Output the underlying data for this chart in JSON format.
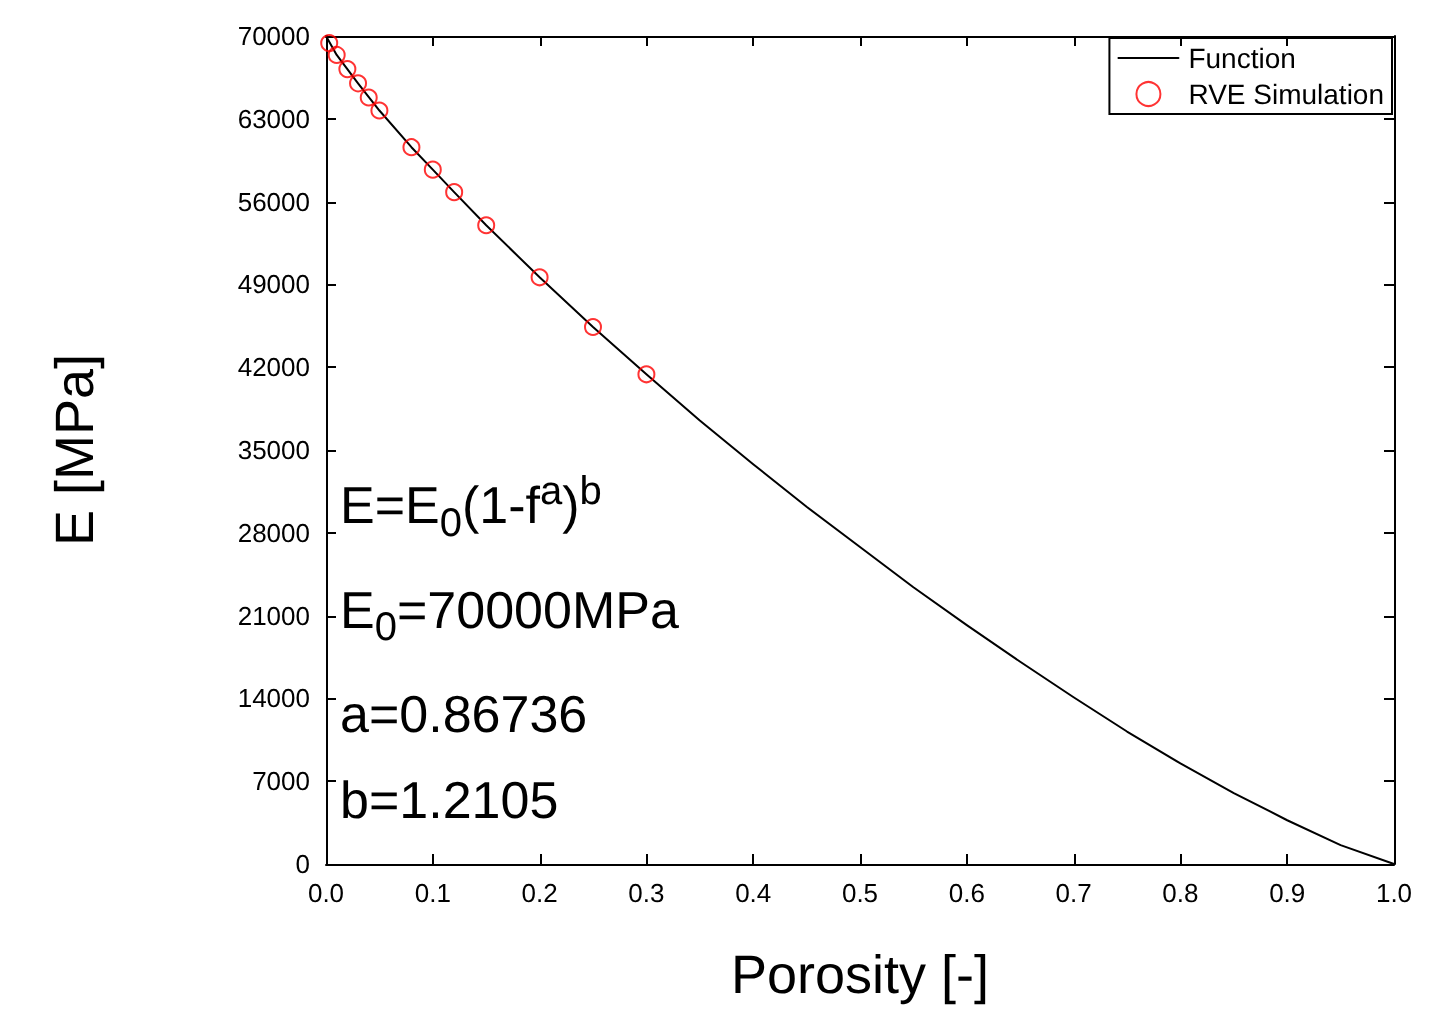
{
  "chart_data": {
    "type": "line",
    "xlabel": "Porosity [-]",
    "ylabel": "E [MPa]",
    "xlim": [
      0,
      1
    ],
    "ylim": [
      0,
      70000
    ],
    "xticks": [
      {
        "value": 0,
        "label": "0.0"
      },
      {
        "value": 0.1,
        "label": "0.1"
      },
      {
        "value": 0.2,
        "label": "0.2"
      },
      {
        "value": 0.3,
        "label": "0.3"
      },
      {
        "value": 0.4,
        "label": "0.4"
      },
      {
        "value": 0.5,
        "label": "0.5"
      },
      {
        "value": 0.6,
        "label": "0.6"
      },
      {
        "value": 0.7,
        "label": "0.7"
      },
      {
        "value": 0.8,
        "label": "0.8"
      },
      {
        "value": 0.9,
        "label": "0.9"
      },
      {
        "value": 1,
        "label": "1.0"
      }
    ],
    "yticks": [
      0,
      7000,
      14000,
      21000,
      28000,
      35000,
      42000,
      49000,
      56000,
      63000,
      70000
    ],
    "grid": false,
    "legend": "top right",
    "series": [
      {
        "name": "Function",
        "color": "#000000",
        "marker": "none",
        "line_style": "solid",
        "x": [
          0,
          0.01,
          0.02,
          0.03,
          0.05,
          0.08,
          0.1,
          0.12,
          0.15,
          0.2,
          0.25,
          0.3,
          0.35,
          0.4,
          0.45,
          0.5,
          0.55,
          0.6,
          0.65,
          0.7,
          0.75,
          0.8,
          0.85,
          0.9,
          0.95,
          1
        ],
        "values": [
          70000,
          68400,
          67200,
          66000,
          63700,
          60600,
          58700,
          56800,
          54000,
          49600,
          45400,
          41400,
          37500,
          33800,
          30200,
          26800,
          23400,
          20200,
          17100,
          14100,
          11200,
          8500,
          6000,
          3700,
          1600,
          0
        ]
      },
      {
        "name": "RVE Simulation",
        "type": "scatter",
        "color": "#ff0000",
        "marker": "circle",
        "x": [
          0.003,
          0.01,
          0.02,
          0.03,
          0.04,
          0.05,
          0.08,
          0.1,
          0.12,
          0.15,
          0.2,
          0.25,
          0.3
        ],
        "values": [
          69400,
          68400,
          67200,
          66000,
          64800,
          63700,
          60600,
          58700,
          56800,
          54000,
          49600,
          45400,
          41400
        ]
      }
    ],
    "annotations": [
      "E=E$_{0}$(1-f$^{a}$)$^{b}$",
      "E$_{0}$=70000MPa",
      "a=0.86736",
      "b=1.2105"
    ]
  }
}
